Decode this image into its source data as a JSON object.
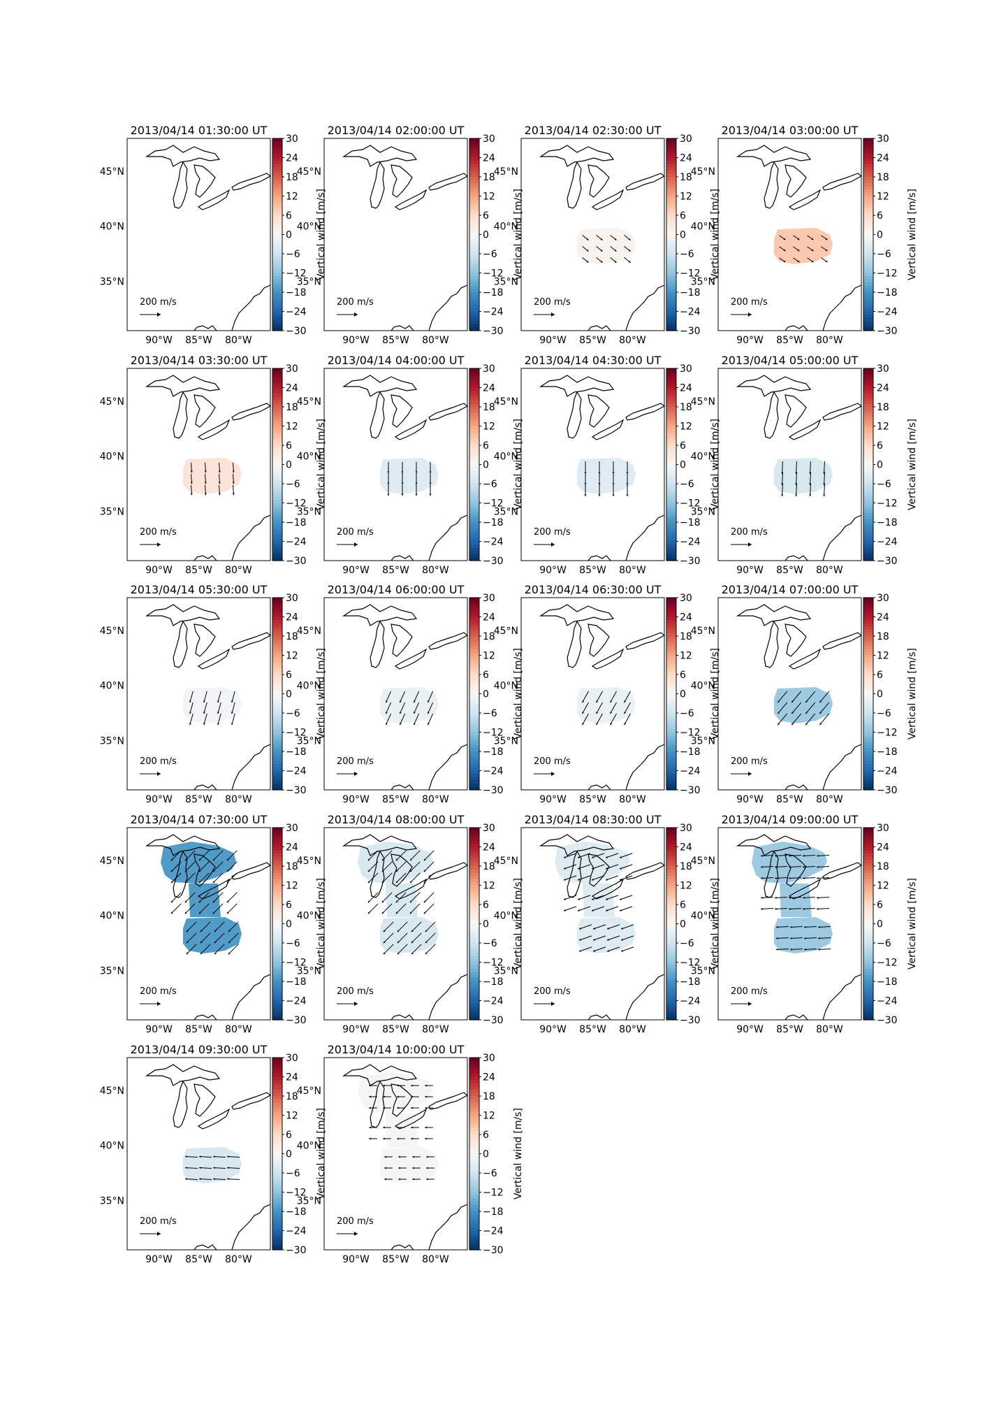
{
  "figure": {
    "colorbar": {
      "label": "Vertical wind [m/s]",
      "ticks": [
        "30",
        "24",
        "18",
        "12",
        "6",
        "0",
        "−6",
        "−12",
        "−18",
        "−24",
        "−30"
      ],
      "min": -30,
      "max": 30,
      "colors": [
        "#053061",
        "#2166ac",
        "#4393c3",
        "#92c5de",
        "#d1e5f0",
        "#f7f7f7",
        "#fddbc7",
        "#f4a582",
        "#d6604d",
        "#b2182b",
        "#67001f"
      ]
    },
    "axes": {
      "lat_labels": [
        "45°N",
        "40°N",
        "35°N"
      ],
      "lat_values": [
        45,
        40,
        35
      ],
      "lon_labels": [
        "90°W",
        "85°W",
        "80°W"
      ],
      "lon_values": [
        -90,
        -85,
        -80
      ],
      "lon_range": [
        -94,
        -76
      ],
      "lat_range": [
        30.5,
        48
      ]
    },
    "quiver_key": "200 m/s"
  },
  "panels": [
    {
      "title": "2013/04/14 01:30:00 UT",
      "shape": "none",
      "value": 0,
      "arrow": [
        0,
        0
      ]
    },
    {
      "title": "2013/04/14 02:00:00 UT",
      "shape": "none",
      "value": 0,
      "arrow": [
        0,
        0
      ]
    },
    {
      "title": "2013/04/14 02:30:00 UT",
      "shape": "south",
      "value": 1,
      "arrow": [
        1,
        -0.8
      ]
    },
    {
      "title": "2013/04/14 03:00:00 UT",
      "shape": "south",
      "value": 8,
      "arrow": [
        1,
        -0.7
      ]
    },
    {
      "title": "2013/04/14 03:30:00 UT",
      "shape": "south",
      "value": 4,
      "arrow": [
        0.1,
        -1.6
      ]
    },
    {
      "title": "2013/04/14 04:00:00 UT",
      "shape": "south",
      "value": -4,
      "arrow": [
        0,
        -1.8
      ]
    },
    {
      "title": "2013/04/14 04:30:00 UT",
      "shape": "south",
      "value": -4,
      "arrow": [
        0,
        -2
      ]
    },
    {
      "title": "2013/04/14 05:00:00 UT",
      "shape": "south",
      "value": -5,
      "arrow": [
        -0.1,
        -2
      ]
    },
    {
      "title": "2013/04/14 05:30:00 UT",
      "shape": "south",
      "value": -1,
      "arrow": [
        -0.5,
        -1.8
      ]
    },
    {
      "title": "2013/04/14 06:00:00 UT",
      "shape": "south",
      "value": -2,
      "arrow": [
        -0.8,
        -1.8
      ]
    },
    {
      "title": "2013/04/14 06:30:00 UT",
      "shape": "south",
      "value": -2,
      "arrow": [
        -1,
        -1.8
      ]
    },
    {
      "title": "2013/04/14 07:00:00 UT",
      "shape": "south",
      "value": -11,
      "arrow": [
        -1.5,
        -1.8
      ]
    },
    {
      "title": "2013/04/14 07:30:00 UT",
      "shape": "both",
      "value": -17,
      "arrow": [
        -1.6,
        -1.6
      ]
    },
    {
      "title": "2013/04/14 08:00:00 UT",
      "shape": "both",
      "value": -5,
      "arrow": [
        -1.6,
        -1.6
      ]
    },
    {
      "title": "2013/04/14 08:30:00 UT",
      "shape": "both",
      "value": -4,
      "arrow": [
        -2,
        -0.7
      ]
    },
    {
      "title": "2013/04/14 09:00:00 UT",
      "shape": "both",
      "value": -11,
      "arrow": [
        -2,
        -0.1
      ]
    },
    {
      "title": "2013/04/14 09:30:00 UT",
      "shape": "south",
      "value": -5,
      "arrow": [
        -2,
        0.1
      ]
    },
    {
      "title": "2013/04/14 10:00:00 UT",
      "shape": "both",
      "value": -0.5,
      "arrow": [
        -1.3,
        0
      ]
    }
  ]
}
